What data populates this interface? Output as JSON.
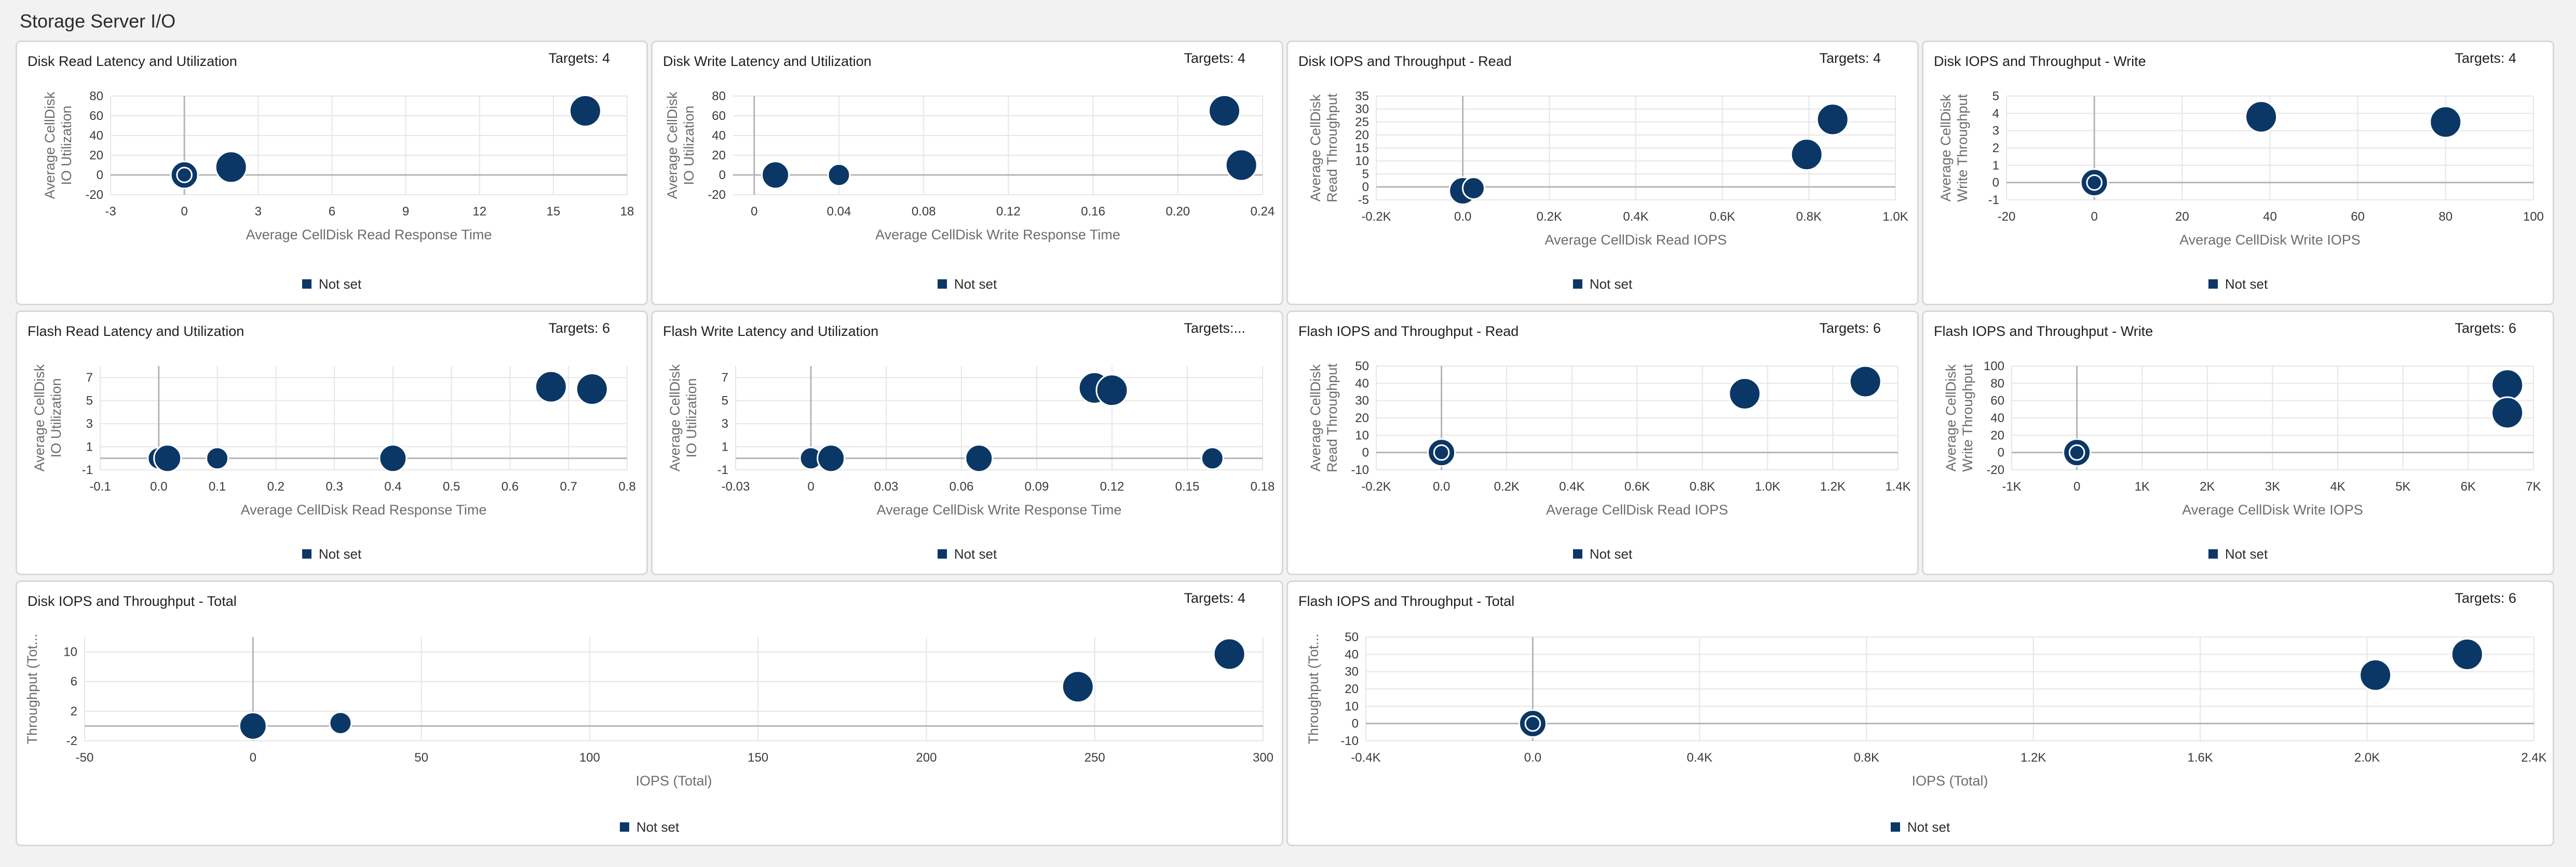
{
  "page": {
    "title": "Storage Server I/O"
  },
  "legend_label": "Not set",
  "colors": {
    "bubble": "#0b3766",
    "grid": "#e6e6e6",
    "zero_line": "#b5b5b5"
  },
  "panels": [
    {
      "title": "Disk Read Latency and Utilization",
      "targets": "Targets: 4",
      "chart_data": {
        "type": "scatter",
        "xlabel": "Average CellDisk Read Response Time",
        "ylabel": [
          "Average CellDisk",
          "IO Utilization"
        ],
        "x_ticks": [
          "-3",
          "0",
          "3",
          "6",
          "9",
          "12",
          "15",
          "18"
        ],
        "y_ticks": [
          "80",
          "60",
          "40",
          "20",
          "0",
          "-20"
        ],
        "xlim": [
          -3,
          18
        ],
        "ylim": [
          -20,
          80
        ],
        "series": [
          {
            "name": "Not set",
            "points": [
              {
                "x": 0,
                "y": 0,
                "size": 0.8,
                "ring": true
              },
              {
                "x": 1.9,
                "y": 8,
                "size": 1.0
              },
              {
                "x": 16.3,
                "y": 65,
                "size": 1.0
              }
            ]
          }
        ]
      }
    },
    {
      "title": "Disk Write Latency and Utilization",
      "targets": "Targets: 4",
      "chart_data": {
        "type": "scatter",
        "xlabel": "Average CellDisk Write Response Time",
        "ylabel": [
          "Average CellDisk",
          "IO Utilization"
        ],
        "x_ticks": [
          "0",
          "0.04",
          "0.08",
          "0.12",
          "0.16",
          "0.20",
          "0.24"
        ],
        "y_ticks": [
          "80",
          "60",
          "40",
          "20",
          "0",
          "-20"
        ],
        "xlim": [
          -0.01,
          0.24
        ],
        "ylim": [
          -20,
          80
        ],
        "series": [
          {
            "name": "Not set",
            "points": [
              {
                "x": 0.01,
                "y": 0,
                "size": 0.8
              },
              {
                "x": 0.04,
                "y": 0,
                "size": 0.55
              },
              {
                "x": 0.222,
                "y": 65,
                "size": 1.0
              },
              {
                "x": 0.23,
                "y": 10,
                "size": 1.0
              }
            ]
          }
        ]
      }
    },
    {
      "title": "Disk IOPS and Throughput - Read",
      "targets": "Targets: 4",
      "chart_data": {
        "type": "scatter",
        "xlabel": "Average CellDisk Read IOPS",
        "ylabel": [
          "Average CellDisk",
          "Read Throughput"
        ],
        "x_ticks": [
          "-0.2K",
          "0.0",
          "0.2K",
          "0.4K",
          "0.6K",
          "0.8K",
          "1.0K"
        ],
        "y_ticks": [
          "35",
          "30",
          "25",
          "20",
          "15",
          "10",
          "5",
          "0",
          "-5"
        ],
        "xlim": [
          -200,
          1000
        ],
        "ylim": [
          -5,
          35
        ],
        "series": [
          {
            "name": "Not set",
            "points": [
              {
                "x": 0,
                "y": -1.5,
                "size": 0.8
              },
              {
                "x": 25,
                "y": -0.5,
                "size": 0.55
              },
              {
                "x": 795,
                "y": 12.5,
                "size": 1.0
              },
              {
                "x": 855,
                "y": 26,
                "size": 1.0
              }
            ]
          }
        ]
      }
    },
    {
      "title": "Disk IOPS and Throughput - Write",
      "targets": "Targets: 4",
      "chart_data": {
        "type": "scatter",
        "xlabel": "Average CellDisk Write IOPS",
        "ylabel": [
          "Average CellDisk",
          "Write Throughput"
        ],
        "x_ticks": [
          "-20",
          "0",
          "20",
          "40",
          "60",
          "80",
          "100"
        ],
        "y_ticks": [
          "5",
          "4",
          "3",
          "2",
          "1",
          "0",
          "-1"
        ],
        "xlim": [
          -20,
          100
        ],
        "ylim": [
          -1,
          5
        ],
        "series": [
          {
            "name": "Not set",
            "points": [
              {
                "x": 0,
                "y": 0,
                "size": 0.8,
                "ring": true
              },
              {
                "x": 38,
                "y": 3.8,
                "size": 1.0
              },
              {
                "x": 80,
                "y": 3.5,
                "size": 1.0
              }
            ]
          }
        ]
      }
    },
    {
      "title": "Flash Read Latency and Utilization",
      "targets": "Targets: 6",
      "chart_data": {
        "type": "scatter",
        "xlabel": "Average CellDisk Read Response Time",
        "ylabel": [
          "Average CellDisk",
          "IO Utilization"
        ],
        "x_ticks": [
          "-0.1",
          "0.0",
          "0.1",
          "0.2",
          "0.3",
          "0.4",
          "0.5",
          "0.6",
          "0.7",
          "0.8"
        ],
        "y_ticks": [
          "7",
          "5",
          "3",
          "1",
          "-1"
        ],
        "xlim": [
          -0.1,
          0.8
        ],
        "ylim": [
          -1,
          8
        ],
        "series": [
          {
            "name": "Not set",
            "points": [
              {
                "x": 0.0,
                "y": 0,
                "size": 0.55
              },
              {
                "x": 0.015,
                "y": 0,
                "size": 0.8
              },
              {
                "x": 0.1,
                "y": 0,
                "size": 0.55
              },
              {
                "x": 0.4,
                "y": 0,
                "size": 0.8
              },
              {
                "x": 0.67,
                "y": 6.2,
                "size": 1.0
              },
              {
                "x": 0.74,
                "y": 6.0,
                "size": 1.0
              }
            ]
          }
        ]
      }
    },
    {
      "title": "Flash Write Latency and Utilization",
      "targets": "Targets:...",
      "chart_data": {
        "type": "scatter",
        "xlabel": "Average CellDisk Write Response Time",
        "ylabel": [
          "Average CellDisk",
          "IO Utilization"
        ],
        "x_ticks": [
          "-0.03",
          "0",
          "0.03",
          "0.06",
          "0.09",
          "0.12",
          "0.15",
          "0.18"
        ],
        "y_ticks": [
          "7",
          "5",
          "3",
          "1",
          "-1"
        ],
        "xlim": [
          -0.03,
          0.18
        ],
        "ylim": [
          -1,
          8
        ],
        "series": [
          {
            "name": "Not set",
            "points": [
              {
                "x": 0.0,
                "y": 0,
                "size": 0.55
              },
              {
                "x": 0.008,
                "y": 0,
                "size": 0.8
              },
              {
                "x": 0.067,
                "y": 0,
                "size": 0.8
              },
              {
                "x": 0.113,
                "y": 6.1,
                "size": 1.0
              },
              {
                "x": 0.12,
                "y": 5.9,
                "size": 1.0
              },
              {
                "x": 0.16,
                "y": 0,
                "size": 0.55
              }
            ]
          }
        ]
      }
    },
    {
      "title": "Flash IOPS and Throughput - Read",
      "targets": "Targets: 6",
      "chart_data": {
        "type": "scatter",
        "xlabel": "Average CellDisk Read IOPS",
        "ylabel": [
          "Average CellDisk",
          "Read Throughput"
        ],
        "x_ticks": [
          "-0.2K",
          "0.0",
          "0.2K",
          "0.4K",
          "0.6K",
          "0.8K",
          "1.0K",
          "1.2K",
          "1.4K"
        ],
        "y_ticks": [
          "50",
          "40",
          "30",
          "20",
          "10",
          "0",
          "-10"
        ],
        "xlim": [
          -200,
          1400
        ],
        "ylim": [
          -10,
          50
        ],
        "series": [
          {
            "name": "Not set",
            "points": [
              {
                "x": 0,
                "y": 0,
                "size": 0.8,
                "ring": true
              },
              {
                "x": 930,
                "y": 34,
                "size": 1.0
              },
              {
                "x": 1300,
                "y": 41,
                "size": 1.0
              }
            ]
          }
        ]
      }
    },
    {
      "title": "Flash IOPS and Throughput - Write",
      "targets": "Targets: 6",
      "chart_data": {
        "type": "scatter",
        "xlabel": "Average CellDisk Write IOPS",
        "ylabel": [
          "Average CellDisk",
          "Write Throughput"
        ],
        "x_ticks": [
          "-1K",
          "0",
          "1K",
          "2K",
          "3K",
          "4K",
          "5K",
          "6K",
          "7K"
        ],
        "y_ticks": [
          "100",
          "80",
          "60",
          "40",
          "20",
          "0",
          "-20"
        ],
        "xlim": [
          -1000,
          7000
        ],
        "ylim": [
          -20,
          100
        ],
        "series": [
          {
            "name": "Not set",
            "points": [
              {
                "x": 0,
                "y": 0,
                "size": 0.8,
                "ring": true
              },
              {
                "x": 6600,
                "y": 78,
                "size": 1.0
              },
              {
                "x": 6600,
                "y": 46,
                "size": 1.0
              }
            ]
          }
        ]
      }
    },
    {
      "title": "Disk IOPS and Throughput - Total",
      "targets": "Targets: 4",
      "chart_data": {
        "type": "scatter",
        "xlabel": "IOPS (Total)",
        "ylabel": [
          "Throughput (Tot..."
        ],
        "x_ticks": [
          "-50",
          "0",
          "50",
          "100",
          "150",
          "200",
          "250",
          "300"
        ],
        "y_ticks": [
          "10",
          "6",
          "2",
          "-2"
        ],
        "xlim": [
          -50,
          300
        ],
        "ylim": [
          -2,
          12
        ],
        "series": [
          {
            "name": "Not set",
            "points": [
              {
                "x": 0,
                "y": 0,
                "size": 0.8
              },
              {
                "x": 26,
                "y": 0.4,
                "size": 0.55
              },
              {
                "x": 245,
                "y": 5.3,
                "size": 1.0
              },
              {
                "x": 290,
                "y": 9.7,
                "size": 1.0
              }
            ]
          }
        ]
      }
    },
    {
      "title": "Flash IOPS and Throughput - Total",
      "targets": "Targets: 6",
      "chart_data": {
        "type": "scatter",
        "xlabel": "IOPS (Total)",
        "ylabel": [
          "Throughput (Tot..."
        ],
        "x_ticks": [
          "-0.4K",
          "0.0",
          "0.4K",
          "0.8K",
          "1.2K",
          "1.6K",
          "2.0K",
          "2.4K"
        ],
        "y_ticks": [
          "50",
          "40",
          "30",
          "20",
          "10",
          "0",
          "-10"
        ],
        "xlim": [
          -400,
          2400
        ],
        "ylim": [
          -10,
          50
        ],
        "series": [
          {
            "name": "Not set",
            "points": [
              {
                "x": 0,
                "y": 0,
                "size": 0.8,
                "ring": true
              },
              {
                "x": 2020,
                "y": 28,
                "size": 1.0
              },
              {
                "x": 2240,
                "y": 40,
                "size": 1.0
              }
            ]
          }
        ]
      }
    }
  ]
}
